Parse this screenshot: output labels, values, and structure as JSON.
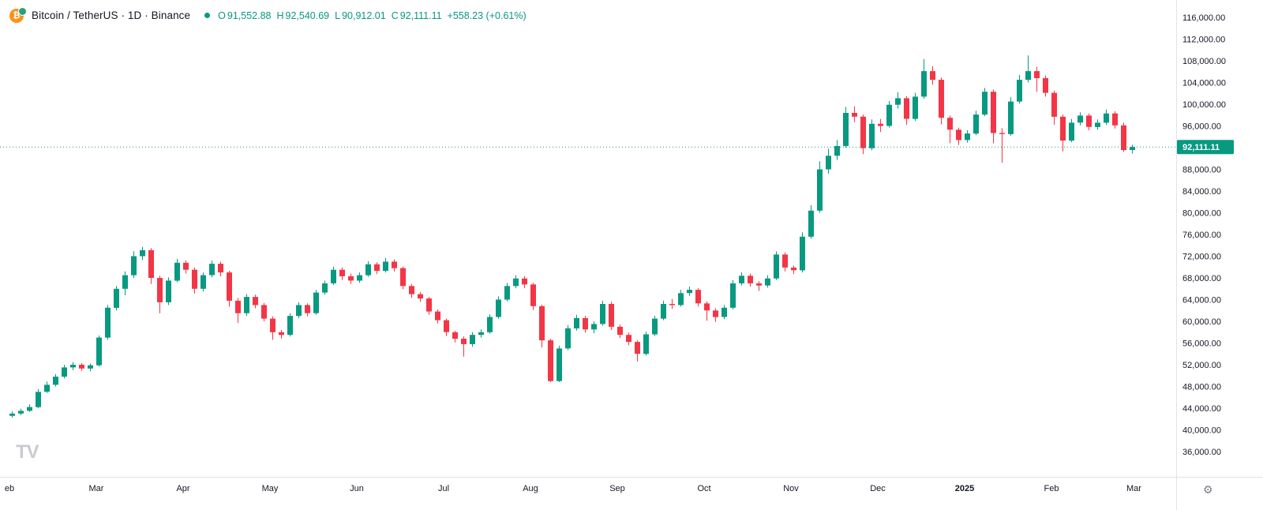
{
  "colors": {
    "up": "#089981",
    "down": "#f23645",
    "bitcoin_orange": "#f7931a",
    "tether_teal": "#26a17b",
    "text": "#131722",
    "muted": "#787b86",
    "border": "#e0e3eb",
    "watermark": "#c9cbd1"
  },
  "header": {
    "logo_letter": "₿",
    "symbol_title": "Bitcoin / TetherUS · 1D · Binance",
    "ohlc": {
      "open_label": "O",
      "open": "91,552.88",
      "high_label": "H",
      "high": "92,540.69",
      "low_label": "L",
      "low": "90,912.01",
      "close_label": "C",
      "close": "92,111.11",
      "change": "+558.23 (+0.61%)"
    }
  },
  "price_axis": {
    "ticks": [
      "116,000.00",
      "112,000.00",
      "108,000.00",
      "104,000.00",
      "100,000.00",
      "96,000.00",
      "88,000.00",
      "84,000.00",
      "80,000.00",
      "76,000.00",
      "72,000.00",
      "68,000.00",
      "64,000.00",
      "60,000.00",
      "56,000.00",
      "52,000.00",
      "48,000.00",
      "44,000.00",
      "40,000.00",
      "36,000.00"
    ],
    "last_price_label": "92,111.11"
  },
  "time_axis": {
    "ticks": [
      {
        "label": "eb",
        "i": 0
      },
      {
        "label": "Mar",
        "i": 10
      },
      {
        "label": "Apr",
        "i": 20
      },
      {
        "label": "May",
        "i": 30
      },
      {
        "label": "Jun",
        "i": 40
      },
      {
        "label": "Jul",
        "i": 50
      },
      {
        "label": "Aug",
        "i": 60
      },
      {
        "label": "Sep",
        "i": 70
      },
      {
        "label": "Oct",
        "i": 80
      },
      {
        "label": "Nov",
        "i": 90
      },
      {
        "label": "Dec",
        "i": 100
      },
      {
        "label": "2025",
        "i": 110,
        "year": true
      },
      {
        "label": "Feb",
        "i": 120
      },
      {
        "label": "Mar",
        "i": 129.5
      }
    ]
  },
  "watermark": "TV",
  "icons": {
    "gear": "⚙"
  },
  "chart_data": {
    "type": "candlestick",
    "symbol": "Bitcoin / TetherUS",
    "interval": "1D",
    "exchange": "Binance",
    "x_range": [
      "Feb 2024",
      "Mar 2025"
    ],
    "price_range": [
      36000,
      116000
    ],
    "last_price": 92111.11,
    "up_color": "#089981",
    "down_color": "#f23645",
    "candle_format": [
      "open",
      "high",
      "low",
      "close"
    ],
    "candles": [
      [
        42600,
        43400,
        42300,
        43000
      ],
      [
        43000,
        43900,
        42700,
        43500
      ],
      [
        43500,
        44700,
        43300,
        44200
      ],
      [
        44200,
        47500,
        44000,
        47000
      ],
      [
        47000,
        48900,
        46800,
        48300
      ],
      [
        48300,
        50300,
        48000,
        49800
      ],
      [
        49800,
        52000,
        49500,
        51500
      ],
      [
        51500,
        52500,
        51000,
        52000
      ],
      [
        52000,
        52300,
        50900,
        51300
      ],
      [
        51300,
        52200,
        50800,
        51900
      ],
      [
        51900,
        57400,
        51700,
        57000
      ],
      [
        57000,
        63000,
        56600,
        62500
      ],
      [
        62500,
        66500,
        62000,
        66000
      ],
      [
        66000,
        69200,
        64800,
        68500
      ],
      [
        68500,
        72900,
        68000,
        72000
      ],
      [
        72000,
        73700,
        71300,
        73100
      ],
      [
        73100,
        73500,
        66900,
        68000
      ],
      [
        68000,
        68400,
        61500,
        63500
      ],
      [
        63500,
        68100,
        63000,
        67500
      ],
      [
        67500,
        71500,
        67200,
        70800
      ],
      [
        70800,
        71200,
        68800,
        69500
      ],
      [
        69500,
        69900,
        65100,
        66000
      ],
      [
        66000,
        69000,
        65500,
        68500
      ],
      [
        68500,
        71200,
        68100,
        70600
      ],
      [
        70600,
        71000,
        68300,
        69000
      ],
      [
        69000,
        69300,
        62700,
        63800
      ],
      [
        63800,
        64300,
        59700,
        61500
      ],
      [
        61500,
        65000,
        61000,
        64500
      ],
      [
        64500,
        64900,
        62400,
        63000
      ],
      [
        63000,
        63400,
        60000,
        60500
      ],
      [
        60500,
        60900,
        56600,
        58000
      ],
      [
        58000,
        58400,
        56800,
        57500
      ],
      [
        57500,
        61500,
        57200,
        61000
      ],
      [
        61000,
        63500,
        60600,
        63000
      ],
      [
        63000,
        63300,
        60900,
        61500
      ],
      [
        61500,
        65800,
        61200,
        65300
      ],
      [
        65300,
        67500,
        64900,
        67000
      ],
      [
        67000,
        70100,
        66700,
        69500
      ],
      [
        69500,
        69900,
        67600,
        68300
      ],
      [
        68300,
        68800,
        66900,
        67500
      ],
      [
        67500,
        69000,
        67100,
        68500
      ],
      [
        68500,
        71100,
        68200,
        70500
      ],
      [
        70500,
        70900,
        68700,
        69300
      ],
      [
        69300,
        71700,
        69000,
        71000
      ],
      [
        71000,
        71400,
        69200,
        69800
      ],
      [
        69800,
        70100,
        65900,
        66500
      ],
      [
        66500,
        66900,
        64300,
        65000
      ],
      [
        65000,
        65400,
        63600,
        64200
      ],
      [
        64200,
        64500,
        61200,
        61800
      ],
      [
        61800,
        62200,
        59600,
        60200
      ],
      [
        60200,
        60500,
        57300,
        58000
      ],
      [
        58000,
        58300,
        56100,
        56800
      ],
      [
        56800,
        57200,
        53500,
        55800
      ],
      [
        55800,
        58000,
        55300,
        57500
      ],
      [
        57500,
        58500,
        57000,
        58000
      ],
      [
        58000,
        61300,
        57700,
        60800
      ],
      [
        60800,
        64600,
        60500,
        64000
      ],
      [
        64000,
        67100,
        63700,
        66500
      ],
      [
        66500,
        68500,
        66100,
        67900
      ],
      [
        67900,
        68300,
        66100,
        66800
      ],
      [
        66800,
        67100,
        62100,
        62800
      ],
      [
        62800,
        63100,
        55200,
        56500
      ],
      [
        56500,
        56800,
        48800,
        49000
      ],
      [
        49000,
        55500,
        48800,
        55000
      ],
      [
        55000,
        59300,
        54700,
        58700
      ],
      [
        58700,
        61200,
        58300,
        60600
      ],
      [
        60600,
        61000,
        57900,
        58500
      ],
      [
        58500,
        60000,
        57800,
        59500
      ],
      [
        59500,
        63800,
        59200,
        63200
      ],
      [
        63200,
        63600,
        58400,
        59000
      ],
      [
        59000,
        59400,
        56900,
        57500
      ],
      [
        57500,
        57900,
        55600,
        56200
      ],
      [
        56200,
        56500,
        52600,
        54000
      ],
      [
        54000,
        58100,
        53700,
        57600
      ],
      [
        57600,
        61000,
        57300,
        60500
      ],
      [
        60500,
        63800,
        60200,
        63200
      ],
      [
        63200,
        64100,
        62300,
        63000
      ],
      [
        63000,
        65800,
        62700,
        65200
      ],
      [
        65200,
        66400,
        64700,
        65800
      ],
      [
        65800,
        66100,
        62700,
        63300
      ],
      [
        63300,
        63700,
        60100,
        62000
      ],
      [
        62000,
        62400,
        59900,
        60800
      ],
      [
        60800,
        63000,
        60400,
        62500
      ],
      [
        62500,
        67600,
        62200,
        67000
      ],
      [
        67000,
        69000,
        66600,
        68400
      ],
      [
        68400,
        68800,
        66400,
        67000
      ],
      [
        67000,
        67400,
        65600,
        66600
      ],
      [
        66600,
        68500,
        66200,
        67900
      ],
      [
        67900,
        72900,
        67600,
        72300
      ],
      [
        72300,
        72700,
        69200,
        69900
      ],
      [
        69900,
        70300,
        68700,
        69400
      ],
      [
        69400,
        76400,
        69000,
        75600
      ],
      [
        75600,
        81400,
        75200,
        80400
      ],
      [
        80400,
        89500,
        80000,
        88000
      ],
      [
        88000,
        91800,
        87200,
        90500
      ],
      [
        90500,
        93400,
        89700,
        92300
      ],
      [
        92300,
        99500,
        92000,
        98400
      ],
      [
        98400,
        99600,
        96700,
        97700
      ],
      [
        97700,
        98100,
        90800,
        91900
      ],
      [
        91900,
        97200,
        91500,
        96400
      ],
      [
        96400,
        97300,
        94900,
        96000
      ],
      [
        96000,
        100600,
        95700,
        99900
      ],
      [
        99900,
        102200,
        99200,
        101100
      ],
      [
        101100,
        101500,
        96200,
        97300
      ],
      [
        97300,
        102100,
        96900,
        101400
      ],
      [
        101400,
        108300,
        101000,
        106100
      ],
      [
        106100,
        107000,
        103600,
        104500
      ],
      [
        104500,
        104900,
        96300,
        97500
      ],
      [
        97500,
        97900,
        92800,
        95300
      ],
      [
        95300,
        95700,
        92500,
        93400
      ],
      [
        93400,
        95200,
        92900,
        94600
      ],
      [
        94600,
        98800,
        94300,
        98100
      ],
      [
        98100,
        103000,
        97800,
        102300
      ],
      [
        102300,
        102700,
        92800,
        94700
      ],
      [
        94700,
        95600,
        89200,
        94500
      ],
      [
        94500,
        101300,
        94200,
        100500
      ],
      [
        100500,
        105400,
        100100,
        104500
      ],
      [
        104500,
        109000,
        104000,
        106100
      ],
      [
        106100,
        106900,
        102300,
        104800
      ],
      [
        104800,
        105300,
        101400,
        102100
      ],
      [
        102100,
        102500,
        96200,
        97700
      ],
      [
        97700,
        98100,
        91300,
        93300
      ],
      [
        93300,
        97300,
        93000,
        96600
      ],
      [
        96600,
        98500,
        96100,
        97900
      ],
      [
        97900,
        98300,
        95200,
        95800
      ],
      [
        95800,
        97200,
        95300,
        96600
      ],
      [
        96600,
        99000,
        96200,
        98300
      ],
      [
        98300,
        98700,
        95500,
        96100
      ],
      [
        96100,
        96600,
        91200,
        91552.88
      ],
      [
        91552.88,
        92540.69,
        90912.01,
        92111.11
      ]
    ]
  }
}
